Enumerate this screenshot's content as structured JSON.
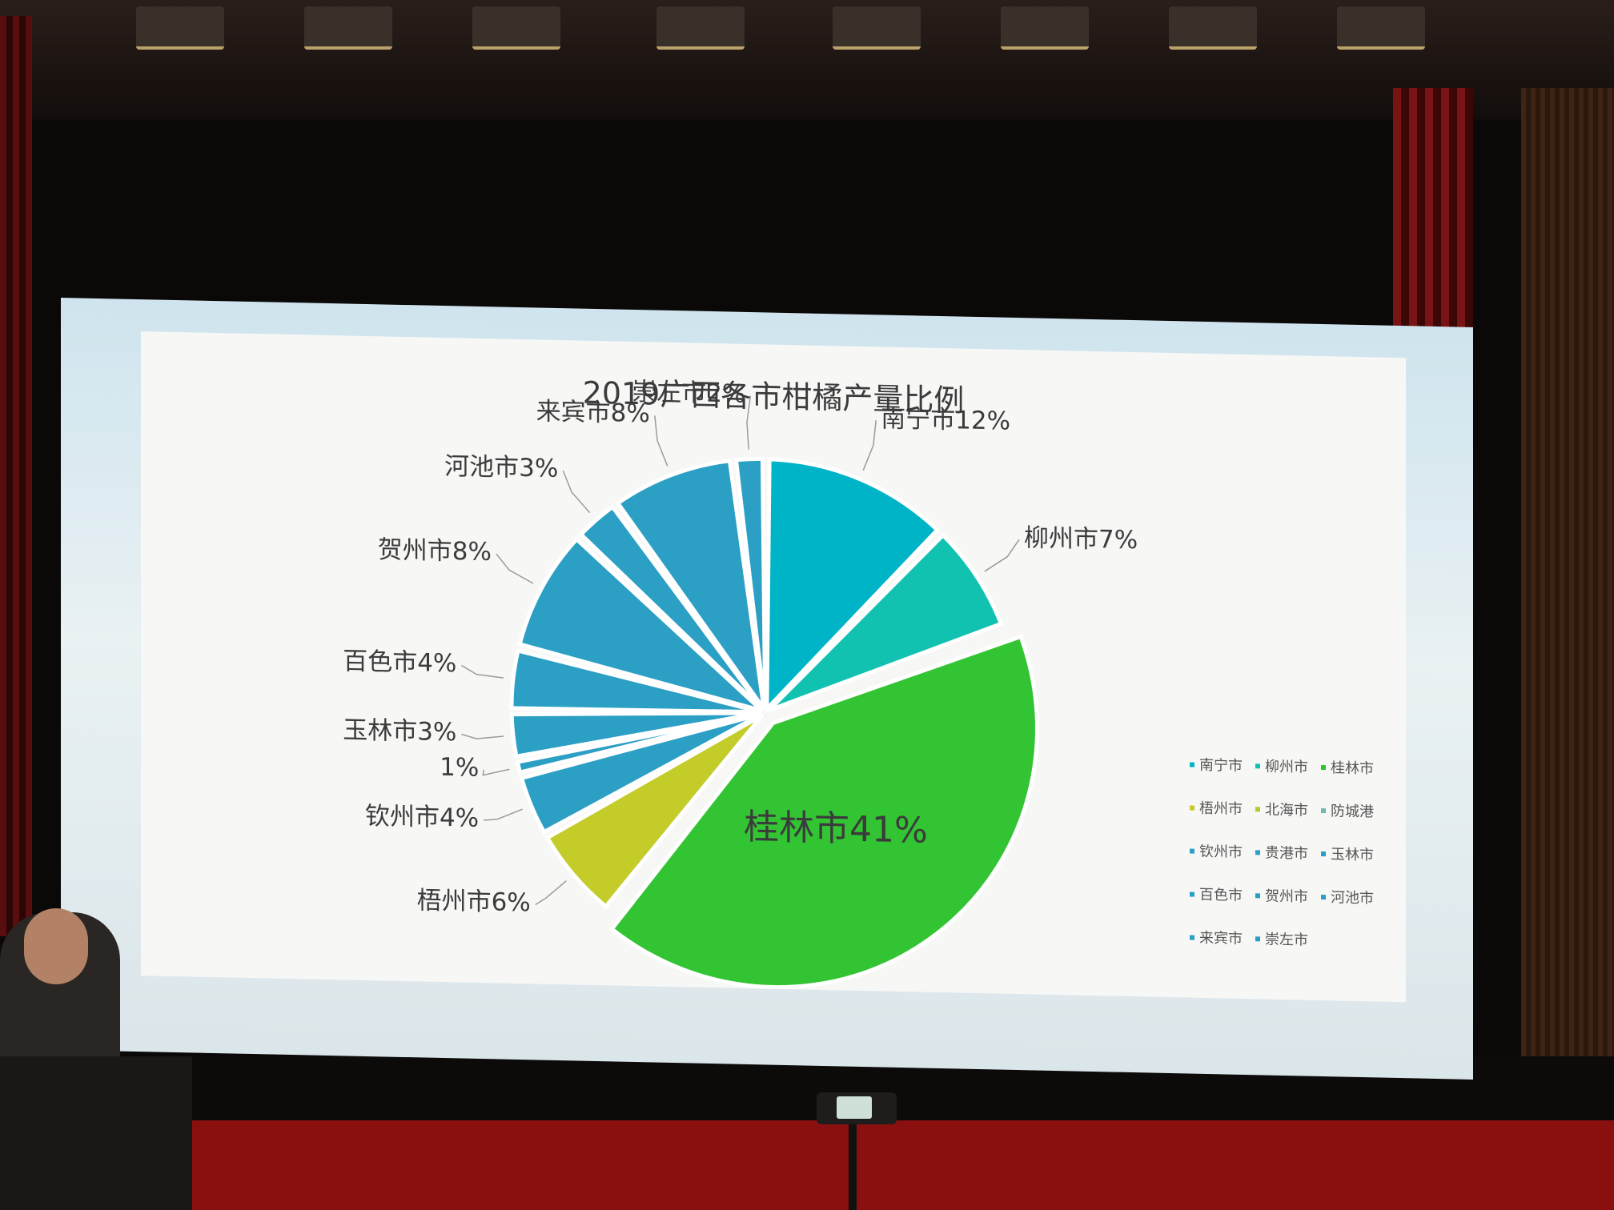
{
  "chart_data": {
    "type": "pie",
    "title": "2019广西各市柑橘产量比例",
    "slices": [
      {
        "name": "南宁市",
        "value": 12,
        "label": "南宁市12%",
        "color": "#00b4c8"
      },
      {
        "name": "柳州市",
        "value": 7,
        "label": "柳州市7%",
        "color": "#12c2b0"
      },
      {
        "name": "桂林市",
        "value": 41,
        "label": "桂林市41%",
        "color": "#33c433"
      },
      {
        "name": "梧州市",
        "value": 6,
        "label": "梧州市6%",
        "color": "#c4cc2a"
      },
      {
        "name": "北海市",
        "value": 0,
        "label": "",
        "color": "#b8c830"
      },
      {
        "name": "防城港",
        "value": 0,
        "label": "",
        "color": "#70b8b0"
      },
      {
        "name": "钦州市",
        "value": 4,
        "label": "钦州市4%",
        "color": "#2b9fc4"
      },
      {
        "name": "贵港市",
        "value": 1,
        "label": "1%",
        "color": "#2b9fc4"
      },
      {
        "name": "玉林市",
        "value": 3,
        "label": "玉林市3%",
        "color": "#2b9fc4"
      },
      {
        "name": "百色市",
        "value": 4,
        "label": "百色市4%",
        "color": "#2b9fc4"
      },
      {
        "name": "贺州市",
        "value": 8,
        "label": "贺州市8%",
        "color": "#2b9fc4"
      },
      {
        "name": "河池市",
        "value": 3,
        "label": "河池市3%",
        "color": "#2b9fc4"
      },
      {
        "name": "来宾市",
        "value": 8,
        "label": "来宾市8%",
        "color": "#2b9fc4"
      },
      {
        "name": "崇左市",
        "value": 2,
        "label": "崇左市2%",
        "color": "#2b9fc4"
      }
    ],
    "legend": {
      "placement": "right",
      "items": [
        "南宁市",
        "柳州市",
        "桂林市",
        "梧州市",
        "北海市",
        "防城港",
        "钦州市",
        "贵港市",
        "玉林市",
        "百色市",
        "贺州市",
        "河池市",
        "来宾市",
        "崇左市"
      ]
    }
  }
}
